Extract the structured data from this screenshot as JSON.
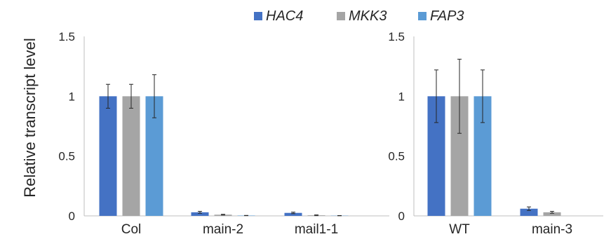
{
  "chart_data": [
    {
      "type": "bar",
      "ylabel": "Relative transcript level",
      "ylim": [
        0,
        1.5
      ],
      "yticks": [
        "0",
        "0.5",
        "1",
        "1.5"
      ],
      "categories": [
        "Col",
        "main-2",
        "mail1-1"
      ],
      "series": [
        {
          "name": "HAC4",
          "color": "#4472c4",
          "values": [
            1.0,
            0.03,
            0.025
          ],
          "errors": [
            0.1,
            0.008,
            0.006
          ]
        },
        {
          "name": "MKK3",
          "color": "#a5a5a5",
          "values": [
            1.0,
            0.01,
            0.005
          ],
          "errors": [
            0.1,
            0.003,
            0.003
          ]
        },
        {
          "name": "FAP3",
          "color": "#5b9bd5",
          "values": [
            1.0,
            0.003,
            0.002
          ],
          "errors": [
            0.18,
            0.001,
            0.001
          ]
        }
      ],
      "legend": "top",
      "grid": false
    },
    {
      "type": "bar",
      "ylim": [
        0,
        1.5
      ],
      "yticks": [
        "0",
        "0.5",
        "1",
        "1.5"
      ],
      "categories": [
        "WT",
        "main-3"
      ],
      "series": [
        {
          "name": "HAC4",
          "color": "#4472c4",
          "values": [
            1.0,
            0.06
          ],
          "errors": [
            0.22,
            0.015
          ]
        },
        {
          "name": "MKK3",
          "color": "#a5a5a5",
          "values": [
            1.0,
            0.03
          ],
          "errors": [
            0.31,
            0.008
          ]
        },
        {
          "name": "FAP3",
          "color": "#5b9bd5",
          "values": [
            1.0,
            0.0
          ],
          "errors": [
            0.22,
            0.0
          ]
        }
      ],
      "legend": "top",
      "grid": false
    }
  ],
  "legend": [
    {
      "name": "HAC4",
      "color": "#4472c4"
    },
    {
      "name": "MKK3",
      "color": "#a5a5a5"
    },
    {
      "name": "FAP3",
      "color": "#5b9bd5"
    }
  ]
}
